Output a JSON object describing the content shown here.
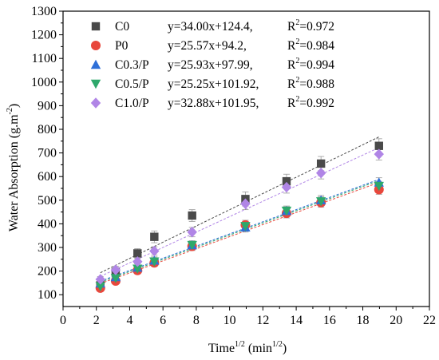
{
  "colors": {
    "C0": "#4a4a4a",
    "P0": "#e8473c",
    "C0.3/P": "#2e6fd8",
    "C0.5/P": "#2ea86b",
    "C1.0/P": "#b085e6"
  },
  "chart_data": {
    "type": "scatter",
    "title": "",
    "xlabel": {
      "base": "Time",
      "sup1": "1/2",
      "mid": " (min",
      "sup2": "1/2",
      "end": ")"
    },
    "ylabel": {
      "base": "Water Absorption (g.m",
      "sup": "-2",
      "end": ")"
    },
    "xlim": [
      0,
      22
    ],
    "ylim": [
      50,
      1300
    ],
    "xticks": [
      0,
      2,
      4,
      6,
      8,
      10,
      12,
      14,
      16,
      18,
      20,
      22
    ],
    "yticks": [
      100,
      200,
      300,
      400,
      500,
      600,
      700,
      800,
      900,
      1000,
      1100,
      1200,
      1300
    ],
    "legend_position": "top-left",
    "x": [
      2.24,
      3.16,
      4.47,
      5.48,
      7.75,
      10.95,
      13.42,
      15.49,
      18.97
    ],
    "series": [
      {
        "name": "C0",
        "marker": "square",
        "equation": "y=34.00x+124.4,",
        "r2_label": "R",
        "r2_sup": "2",
        "r2_value": "=0.972",
        "values": [
          140,
          195,
          275,
          345,
          435,
          505,
          580,
          655,
          730
        ],
        "errors": [
          15,
          20,
          20,
          25,
          25,
          30,
          30,
          30,
          30
        ]
      },
      {
        "name": "P0",
        "marker": "circle",
        "equation": "y=25.57x+94.2,",
        "r2_label": "R",
        "r2_sup": "2",
        "r2_value": "=0.984",
        "values": [
          128,
          158,
          203,
          235,
          305,
          395,
          445,
          490,
          545
        ],
        "errors": [
          10,
          12,
          15,
          15,
          18,
          20,
          20,
          20,
          20
        ]
      },
      {
        "name": "C0.3/P",
        "marker": "triangle-up",
        "equation": "y=25.93x+97.99,",
        "r2_label": "R",
        "r2_sup": "2",
        "r2_value": "=0.994",
        "values": [
          148,
          175,
          215,
          245,
          310,
          385,
          455,
          500,
          575
        ],
        "errors": [
          10,
          12,
          15,
          15,
          18,
          20,
          20,
          20,
          20
        ]
      },
      {
        "name": "C0.5/P",
        "marker": "triangle-down",
        "equation": "y=25.25x+101.92,",
        "r2_label": "R",
        "r2_sup": "2",
        "r2_value": "=0.988",
        "values": [
          135,
          170,
          210,
          240,
          310,
          390,
          455,
          495,
          560
        ],
        "errors": [
          10,
          12,
          15,
          15,
          18,
          20,
          20,
          20,
          20
        ]
      },
      {
        "name": "C1.0/P",
        "marker": "diamond",
        "equation": "y=32.88x+101.95,",
        "r2_label": "R",
        "r2_sup": "2",
        "r2_value": "=0.992",
        "values": [
          165,
          205,
          240,
          285,
          365,
          485,
          555,
          615,
          695
        ],
        "errors": [
          12,
          15,
          15,
          18,
          20,
          25,
          25,
          25,
          25
        ]
      }
    ]
  }
}
